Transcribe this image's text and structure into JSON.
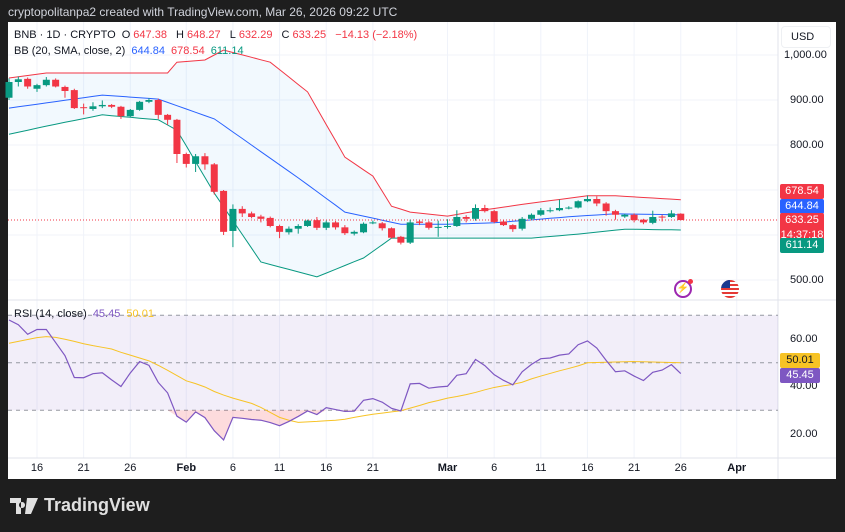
{
  "header": {
    "caption": "cryptopolitanpa2 created with TradingView.com, Mar 26, 2026 09:22 UTC"
  },
  "legend": {
    "symbol": "BNB · 1D · CRYPTO",
    "o_label": "O",
    "o": "647.38",
    "h_label": "H",
    "h": "648.27",
    "l_label": "L",
    "l": "632.29",
    "c_label": "C",
    "c": "633.25",
    "change": "−14.13 (−2.18%)",
    "bb_label": "BB (20, SMA, close, 2)",
    "bb_basis": "644.84",
    "bb_upper": "678.54",
    "bb_lower": "611.14",
    "rsi_label": "RSI (14, close)",
    "rsi_value": "45.45",
    "rsi_ma": "50.01"
  },
  "price_axis": {
    "currency": "USD",
    "ticks": [
      "1,000.00",
      "900.00",
      "800.00",
      "500.00"
    ]
  },
  "price_labels": {
    "upper": "678.54",
    "basis": "644.84",
    "last": "633.25",
    "countdown": "14:37:18",
    "lower": "611.14"
  },
  "rsi_axis": {
    "ticks": [
      "60.00",
      "40.00",
      "20.00"
    ],
    "ma_label": "50.01",
    "rsi_label": "45.45"
  },
  "date_axis": [
    {
      "label": "16",
      "date": "2026-01-16",
      "bold": false
    },
    {
      "label": "21",
      "date": "2026-01-21",
      "bold": false
    },
    {
      "label": "26",
      "date": "2026-01-26",
      "bold": false
    },
    {
      "label": "Feb",
      "date": "2026-02-01",
      "bold": true
    },
    {
      "label": "6",
      "date": "2026-02-06",
      "bold": false
    },
    {
      "label": "11",
      "date": "2026-02-11",
      "bold": false
    },
    {
      "label": "16",
      "date": "2026-02-16",
      "bold": false
    },
    {
      "label": "21",
      "date": "2026-02-21",
      "bold": false
    },
    {
      "label": "Mar",
      "date": "2026-03-01",
      "bold": true
    },
    {
      "label": "6",
      "date": "2026-03-06",
      "bold": false
    },
    {
      "label": "11",
      "date": "2026-03-11",
      "bold": false
    },
    {
      "label": "16",
      "date": "2026-03-16",
      "bold": false
    },
    {
      "label": "21",
      "date": "2026-03-21",
      "bold": false
    },
    {
      "label": "26",
      "date": "2026-03-26",
      "bold": false
    },
    {
      "label": "Apr",
      "date": "2026-04-01",
      "bold": true
    }
  ],
  "icons": {
    "lightning": "lightning-icon",
    "flag": "us-flag-icon",
    "logo": "tradingview-logo"
  },
  "footer": {
    "brand": "TradingView"
  },
  "colors": {
    "up": "#089981",
    "down": "#f23645",
    "basis": "#2962ff",
    "upper": "#f23645",
    "lower": "#089981",
    "rsi": "#7e57c2",
    "rsi_ma": "#f7c325"
  },
  "chart_data": [
    {
      "type": "candlestick",
      "symbol": "BNB · 1D · CRYPTO",
      "ylim": [
        480,
        1030
      ],
      "grid": true,
      "candles_fields": [
        "date",
        "open",
        "high",
        "low",
        "close"
      ],
      "candles": [
        [
          "2026-01-13",
          905,
          948,
          900,
          940
        ],
        [
          "2026-01-14",
          940,
          952,
          930,
          946
        ],
        [
          "2026-01-15",
          947,
          950,
          925,
          930
        ],
        [
          "2026-01-16",
          925,
          936,
          918,
          933
        ],
        [
          "2026-01-17",
          933,
          951,
          930,
          945
        ],
        [
          "2026-01-18",
          945,
          948,
          928,
          930
        ],
        [
          "2026-01-19",
          929,
          932,
          905,
          920
        ],
        [
          "2026-01-20",
          922,
          925,
          880,
          882
        ],
        [
          "2026-01-21",
          884,
          892,
          868,
          882
        ],
        [
          "2026-01-22",
          880,
          895,
          876,
          886
        ],
        [
          "2026-01-23",
          886,
          899,
          882,
          889
        ],
        [
          "2026-01-24",
          889,
          891,
          882,
          885
        ],
        [
          "2026-01-25",
          885,
          887,
          858,
          864
        ],
        [
          "2026-01-26",
          864,
          880,
          862,
          878
        ],
        [
          "2026-01-27",
          878,
          898,
          876,
          896
        ],
        [
          "2026-01-28",
          896,
          904,
          893,
          900
        ],
        [
          "2026-01-29",
          900,
          903,
          858,
          867
        ],
        [
          "2026-01-30",
          867,
          869,
          845,
          856
        ],
        [
          "2026-01-31",
          856,
          858,
          760,
          780
        ],
        [
          "2026-02-01",
          780,
          783,
          750,
          758
        ],
        [
          "2026-02-02",
          758,
          780,
          740,
          775
        ],
        [
          "2026-02-03",
          775,
          782,
          745,
          757
        ],
        [
          "2026-02-04",
          757,
          760,
          690,
          696
        ],
        [
          "2026-02-05",
          698,
          700,
          600,
          607
        ],
        [
          "2026-02-06",
          609,
          668,
          573,
          658
        ],
        [
          "2026-02-07",
          658,
          664,
          640,
          648
        ],
        [
          "2026-02-08",
          648,
          652,
          637,
          640
        ],
        [
          "2026-02-09",
          641,
          645,
          628,
          636
        ],
        [
          "2026-02-10",
          638,
          641,
          617,
          620
        ],
        [
          "2026-02-11",
          620,
          623,
          593,
          607
        ],
        [
          "2026-02-12",
          606,
          619,
          601,
          614
        ],
        [
          "2026-02-13",
          614,
          624,
          603,
          620
        ],
        [
          "2026-02-14",
          620,
          634,
          618,
          632
        ],
        [
          "2026-02-15",
          633,
          640,
          611,
          616
        ],
        [
          "2026-02-16",
          616,
          632,
          611,
          628
        ],
        [
          "2026-02-17",
          628,
          631,
          612,
          617
        ],
        [
          "2026-02-18",
          617,
          622,
          600,
          604
        ],
        [
          "2026-02-19",
          603,
          610,
          599,
          607
        ],
        [
          "2026-02-20",
          606,
          628,
          604,
          625
        ],
        [
          "2026-02-21",
          628,
          632,
          624,
          628
        ],
        [
          "2026-02-22",
          626,
          629,
          610,
          615
        ],
        [
          "2026-02-23",
          615,
          617,
          592,
          594
        ],
        [
          "2026-02-24",
          596,
          598,
          579,
          583
        ],
        [
          "2026-02-25",
          583,
          634,
          580,
          628
        ],
        [
          "2026-02-26",
          630,
          633,
          622,
          627
        ],
        [
          "2026-02-27",
          628,
          631,
          612,
          616
        ],
        [
          "2026-02-28",
          618,
          632,
          596,
          618
        ],
        [
          "2026-03-01",
          618,
          635,
          614,
          620
        ],
        [
          "2026-03-02",
          620,
          655,
          618,
          640
        ],
        [
          "2026-03-03",
          640,
          644,
          628,
          636
        ],
        [
          "2026-03-04",
          636,
          668,
          632,
          660
        ],
        [
          "2026-03-05",
          660,
          667,
          650,
          653
        ],
        [
          "2026-03-06",
          653,
          656,
          626,
          629
        ],
        [
          "2026-03-07",
          630,
          633,
          620,
          622
        ],
        [
          "2026-03-08",
          622,
          624,
          607,
          613
        ],
        [
          "2026-03-09",
          614,
          640,
          610,
          636
        ],
        [
          "2026-03-10",
          636,
          648,
          633,
          645
        ],
        [
          "2026-03-11",
          645,
          660,
          642,
          655
        ],
        [
          "2026-03-12",
          654,
          661,
          650,
          655
        ],
        [
          "2026-03-13",
          655,
          679,
          653,
          660
        ],
        [
          "2026-03-14",
          660,
          664,
          657,
          661
        ],
        [
          "2026-03-15",
          661,
          677,
          659,
          675
        ],
        [
          "2026-03-16",
          675,
          688,
          673,
          680
        ],
        [
          "2026-03-17",
          680,
          686,
          664,
          670
        ],
        [
          "2026-03-18",
          670,
          673,
          643,
          653
        ],
        [
          "2026-03-19",
          653,
          656,
          634,
          645
        ],
        [
          "2026-03-20",
          641,
          647,
          638,
          645
        ],
        [
          "2026-03-21",
          645,
          648,
          628,
          633
        ],
        [
          "2026-03-22",
          634,
          636,
          624,
          628
        ],
        [
          "2026-03-23",
          627,
          654,
          624,
          640
        ],
        [
          "2026-03-24",
          641,
          645,
          630,
          640
        ],
        [
          "2026-03-25",
          640,
          655,
          638,
          648
        ],
        [
          "2026-03-26",
          647.38,
          648.27,
          632.29,
          633.25
        ]
      ],
      "bollinger": {
        "upper": [
          [
            "2026-01-13",
            949
          ],
          [
            "2026-01-17",
            960
          ],
          [
            "2026-01-30",
            960
          ],
          [
            "2026-01-31",
            984
          ],
          [
            "2026-02-03",
            989
          ],
          [
            "2026-02-05",
            1011
          ],
          [
            "2026-02-10",
            984
          ],
          [
            "2026-02-14",
            918
          ],
          [
            "2026-02-18",
            773
          ],
          [
            "2026-02-21",
            731
          ],
          [
            "2026-02-23",
            664
          ],
          [
            "2026-02-25",
            651
          ],
          [
            "2026-03-01",
            642
          ],
          [
            "2026-03-04",
            653
          ],
          [
            "2026-03-10",
            671
          ],
          [
            "2026-03-16",
            687
          ],
          [
            "2026-03-19",
            687
          ],
          [
            "2026-03-26",
            678.54
          ]
        ],
        "basis": [
          [
            "2026-01-13",
            882
          ],
          [
            "2026-01-23",
            911
          ],
          [
            "2026-01-29",
            902
          ],
          [
            "2026-02-04",
            858
          ],
          [
            "2026-02-13",
            727
          ],
          [
            "2026-02-18",
            651
          ],
          [
            "2026-02-24",
            624
          ],
          [
            "2026-03-01",
            624
          ],
          [
            "2026-03-06",
            627
          ],
          [
            "2026-03-15",
            642
          ],
          [
            "2026-03-19",
            647
          ],
          [
            "2026-03-26",
            644.84
          ]
        ],
        "lower": [
          [
            "2026-01-13",
            824
          ],
          [
            "2026-01-17",
            842
          ],
          [
            "2026-01-23",
            867
          ],
          [
            "2026-01-29",
            856
          ],
          [
            "2026-01-31",
            833
          ],
          [
            "2026-02-04",
            693
          ],
          [
            "2026-02-09",
            540
          ],
          [
            "2026-02-15",
            507
          ],
          [
            "2026-02-20",
            549
          ],
          [
            "2026-02-23",
            593
          ],
          [
            "2026-03-10",
            593
          ],
          [
            "2026-03-15",
            602
          ],
          [
            "2026-03-20",
            613
          ],
          [
            "2026-03-26",
            611.14
          ]
        ]
      }
    },
    {
      "type": "line",
      "title": "RSI (14, close)",
      "ylim": [
        10,
        75
      ],
      "levels": [
        70,
        50,
        30
      ],
      "series": [
        {
          "name": "RSI",
          "values": [
            68,
            66,
            62,
            64,
            64,
            58.5,
            53,
            43.8,
            43.7,
            45.4,
            45.8,
            42.8,
            40,
            45.7,
            50.5,
            48.9,
            41.7,
            37.3,
            27.5,
            25,
            29.3,
            26.9,
            21.4,
            17.5,
            27,
            26.6,
            26.1,
            25.8,
            24.8,
            23.5,
            25.3,
            27.4,
            29.7,
            28.2,
            31.1,
            30.3,
            29.5,
            29.6,
            34.2,
            34.9,
            33.4,
            30.8,
            29.7,
            41.1,
            41.3,
            39.3,
            39.8,
            40.1,
            44.7,
            45.4,
            51.4,
            48.8,
            45,
            42.6,
            40.7,
            46.2,
            49.3,
            51.7,
            52,
            53.2,
            53.7,
            57.6,
            59.2,
            56.2,
            51,
            46.2,
            46.6,
            44.4,
            42.5,
            46,
            46.9,
            49.2,
            45.45
          ]
        },
        {
          "name": "RSI-based MA",
          "values": [
            58.2,
            59,
            59.8,
            60.6,
            61,
            60.7,
            59.9,
            59,
            58,
            57.2,
            56.5,
            55.8,
            54.4,
            53.2,
            52,
            50.8,
            48.9,
            46.8,
            44.6,
            42.4,
            41.2,
            39.8,
            37.9,
            36.4,
            35.1,
            34,
            32.9,
            31.2,
            29.1,
            27,
            25.8,
            24.9,
            25.1,
            25.3,
            25.6,
            25.8,
            26.2,
            27,
            27.7,
            28.3,
            28.8,
            29.3,
            29.8,
            30.9,
            32,
            33.2,
            34.1,
            35.1,
            35.8,
            36.6,
            37.5,
            38.6,
            39.6,
            40.3,
            40.9,
            41.8,
            43.2,
            44.4,
            45.5,
            46.6,
            47.6,
            48.7,
            50,
            50.1,
            50.2,
            50.3,
            50.4,
            50.5,
            50.4,
            50.3,
            50.2,
            50.1,
            50.01
          ]
        }
      ]
    }
  ]
}
